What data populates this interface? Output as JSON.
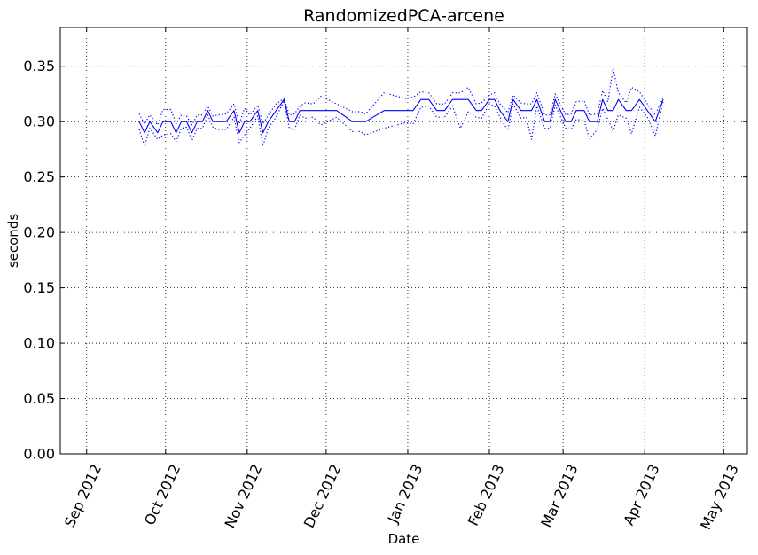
{
  "chart_data": {
    "type": "line",
    "title": "RandomizedPCA-arcene",
    "xlabel": "Date",
    "ylabel": "seconds",
    "xlim": [
      "2012-08-22",
      "2013-05-10"
    ],
    "ylim": [
      0.0,
      0.385
    ],
    "grid": true,
    "line_color": "#0000ff",
    "x_ticks": [
      {
        "date": "2012-09-01",
        "label": "Sep 2012"
      },
      {
        "date": "2012-10-01",
        "label": "Oct 2012"
      },
      {
        "date": "2012-11-01",
        "label": "Nov 2012"
      },
      {
        "date": "2012-12-01",
        "label": "Dec 2012"
      },
      {
        "date": "2013-01-01",
        "label": "Jan 2013"
      },
      {
        "date": "2013-02-01",
        "label": "Feb 2013"
      },
      {
        "date": "2013-03-01",
        "label": "Mar 2013"
      },
      {
        "date": "2013-04-01",
        "label": "Apr 2013"
      },
      {
        "date": "2013-05-01",
        "label": "May 2013"
      }
    ],
    "y_ticks": [
      {
        "value": 0.0,
        "label": "0.00"
      },
      {
        "value": 0.05,
        "label": "0.05"
      },
      {
        "value": 0.1,
        "label": "0.10"
      },
      {
        "value": 0.15,
        "label": "0.15"
      },
      {
        "value": 0.2,
        "label": "0.20"
      },
      {
        "value": 0.25,
        "label": "0.25"
      },
      {
        "value": 0.3,
        "label": "0.30"
      },
      {
        "value": 0.35,
        "label": "0.35"
      }
    ],
    "series": [
      {
        "style": "solid",
        "x": [
          "2012-09-21",
          "2012-09-23",
          "2012-09-25",
          "2012-09-28",
          "2012-09-30",
          "2012-10-03",
          "2012-10-05",
          "2012-10-07",
          "2012-10-09",
          "2012-10-11",
          "2012-10-13",
          "2012-10-15",
          "2012-10-17",
          "2012-10-19",
          "2012-10-21",
          "2012-10-24",
          "2012-10-27",
          "2012-10-29",
          "2012-10-31",
          "2012-11-02",
          "2012-11-05",
          "2012-11-07",
          "2012-11-09",
          "2012-11-12",
          "2012-11-15",
          "2012-11-17",
          "2012-11-19",
          "2012-11-21",
          "2012-11-23",
          "2012-11-26",
          "2012-11-29",
          "2012-12-05",
          "2012-12-11",
          "2012-12-14",
          "2012-12-16",
          "2012-12-23",
          "2012-12-31",
          "2013-01-03",
          "2013-01-06",
          "2013-01-09",
          "2013-01-12",
          "2013-01-15",
          "2013-01-18",
          "2013-01-21",
          "2013-01-24",
          "2013-01-27",
          "2013-01-29",
          "2013-02-01",
          "2013-02-03",
          "2013-02-05",
          "2013-02-08",
          "2013-02-10",
          "2013-02-13",
          "2013-02-15",
          "2013-02-17",
          "2013-02-19",
          "2013-02-22",
          "2013-02-24",
          "2013-02-26",
          "2013-03-02",
          "2013-03-04",
          "2013-03-06",
          "2013-03-09",
          "2013-03-11",
          "2013-03-14",
          "2013-03-16",
          "2013-03-18",
          "2013-03-20",
          "2013-03-22",
          "2013-03-25",
          "2013-03-27",
          "2013-03-30",
          "2013-04-02",
          "2013-04-05",
          "2013-04-08"
        ],
        "values": [
          0.3,
          0.29,
          0.3,
          0.29,
          0.3,
          0.3,
          0.29,
          0.3,
          0.3,
          0.29,
          0.3,
          0.3,
          0.31,
          0.3,
          0.3,
          0.3,
          0.31,
          0.29,
          0.3,
          0.3,
          0.31,
          0.29,
          0.3,
          0.31,
          0.32,
          0.3,
          0.3,
          0.31,
          0.31,
          0.31,
          0.31,
          0.31,
          0.3,
          0.3,
          0.3,
          0.31,
          0.31,
          0.31,
          0.32,
          0.32,
          0.31,
          0.31,
          0.32,
          0.32,
          0.32,
          0.31,
          0.31,
          0.32,
          0.32,
          0.31,
          0.3,
          0.32,
          0.31,
          0.31,
          0.31,
          0.32,
          0.3,
          0.3,
          0.32,
          0.3,
          0.3,
          0.31,
          0.31,
          0.3,
          0.3,
          0.32,
          0.31,
          0.31,
          0.32,
          0.31,
          0.31,
          0.32,
          0.31,
          0.3,
          0.32
        ]
      },
      {
        "style": "dotted",
        "x": [
          "2012-09-21",
          "2012-09-23",
          "2012-09-25",
          "2012-09-28",
          "2012-09-30",
          "2012-10-03",
          "2012-10-05",
          "2012-10-07",
          "2012-10-09",
          "2012-10-11",
          "2012-10-13",
          "2012-10-15",
          "2012-10-17",
          "2012-10-19",
          "2012-10-21",
          "2012-10-24",
          "2012-10-27",
          "2012-10-29",
          "2012-10-31",
          "2012-11-02",
          "2012-11-05",
          "2012-11-07",
          "2012-11-09",
          "2012-11-12",
          "2012-11-15",
          "2012-11-17",
          "2012-11-19",
          "2012-11-21",
          "2012-11-23",
          "2012-11-26",
          "2012-11-29",
          "2012-12-05",
          "2012-12-11",
          "2012-12-14",
          "2012-12-16",
          "2012-12-23",
          "2012-12-31",
          "2013-01-03",
          "2013-01-06",
          "2013-01-09",
          "2013-01-12",
          "2013-01-15",
          "2013-01-18",
          "2013-01-21",
          "2013-01-24",
          "2013-01-27",
          "2013-01-29",
          "2013-02-01",
          "2013-02-03",
          "2013-02-05",
          "2013-02-08",
          "2013-02-10",
          "2013-02-13",
          "2013-02-15",
          "2013-02-17",
          "2013-02-19",
          "2013-02-22",
          "2013-02-24",
          "2013-02-26",
          "2013-03-02",
          "2013-03-04",
          "2013-03-06",
          "2013-03-09",
          "2013-03-11",
          "2013-03-14",
          "2013-03-16",
          "2013-03-18",
          "2013-03-20",
          "2013-03-22",
          "2013-03-25",
          "2013-03-27",
          "2013-03-30",
          "2013-04-02",
          "2013-04-05",
          "2013-04-08"
        ],
        "values": [
          0.307,
          0.298,
          0.306,
          0.297,
          0.311,
          0.311,
          0.298,
          0.306,
          0.305,
          0.297,
          0.306,
          0.306,
          0.314,
          0.305,
          0.306,
          0.307,
          0.316,
          0.298,
          0.312,
          0.306,
          0.315,
          0.298,
          0.306,
          0.316,
          0.321,
          0.306,
          0.307,
          0.314,
          0.317,
          0.316,
          0.323,
          0.316,
          0.309,
          0.309,
          0.307,
          0.326,
          0.321,
          0.322,
          0.327,
          0.326,
          0.316,
          0.316,
          0.326,
          0.326,
          0.331,
          0.316,
          0.317,
          0.324,
          0.326,
          0.316,
          0.308,
          0.324,
          0.317,
          0.316,
          0.316,
          0.326,
          0.306,
          0.306,
          0.325,
          0.306,
          0.307,
          0.318,
          0.319,
          0.306,
          0.307,
          0.328,
          0.318,
          0.348,
          0.326,
          0.317,
          0.331,
          0.327,
          0.316,
          0.306,
          0.322
        ]
      },
      {
        "style": "dotted",
        "x": [
          "2012-09-21",
          "2012-09-23",
          "2012-09-25",
          "2012-09-28",
          "2012-09-30",
          "2012-10-03",
          "2012-10-05",
          "2012-10-07",
          "2012-10-09",
          "2012-10-11",
          "2012-10-13",
          "2012-10-15",
          "2012-10-17",
          "2012-10-19",
          "2012-10-21",
          "2012-10-24",
          "2012-10-27",
          "2012-10-29",
          "2012-10-31",
          "2012-11-02",
          "2012-11-05",
          "2012-11-07",
          "2012-11-09",
          "2012-11-12",
          "2012-11-15",
          "2012-11-17",
          "2012-11-19",
          "2012-11-21",
          "2012-11-23",
          "2012-11-26",
          "2012-11-29",
          "2012-12-05",
          "2012-12-11",
          "2012-12-14",
          "2012-12-16",
          "2012-12-23",
          "2012-12-31",
          "2013-01-03",
          "2013-01-06",
          "2013-01-09",
          "2013-01-12",
          "2013-01-15",
          "2013-01-18",
          "2013-01-21",
          "2013-01-24",
          "2013-01-27",
          "2013-01-29",
          "2013-02-01",
          "2013-02-03",
          "2013-02-05",
          "2013-02-08",
          "2013-02-10",
          "2013-02-13",
          "2013-02-15",
          "2013-02-17",
          "2013-02-19",
          "2013-02-22",
          "2013-02-24",
          "2013-02-26",
          "2013-03-02",
          "2013-03-04",
          "2013-03-06",
          "2013-03-09",
          "2013-03-11",
          "2013-03-14",
          "2013-03-16",
          "2013-03-18",
          "2013-03-20",
          "2013-03-22",
          "2013-03-25",
          "2013-03-27",
          "2013-03-30",
          "2013-04-02",
          "2013-04-05",
          "2013-04-08"
        ],
        "values": [
          0.293,
          0.278,
          0.294,
          0.284,
          0.288,
          0.289,
          0.282,
          0.294,
          0.295,
          0.283,
          0.294,
          0.294,
          0.306,
          0.295,
          0.293,
          0.293,
          0.304,
          0.281,
          0.288,
          0.294,
          0.305,
          0.278,
          0.294,
          0.304,
          0.319,
          0.294,
          0.293,
          0.306,
          0.303,
          0.304,
          0.297,
          0.304,
          0.291,
          0.291,
          0.288,
          0.294,
          0.299,
          0.298,
          0.313,
          0.314,
          0.304,
          0.304,
          0.314,
          0.294,
          0.309,
          0.304,
          0.303,
          0.316,
          0.314,
          0.304,
          0.292,
          0.316,
          0.303,
          0.304,
          0.284,
          0.314,
          0.294,
          0.294,
          0.315,
          0.294,
          0.293,
          0.302,
          0.301,
          0.284,
          0.293,
          0.312,
          0.302,
          0.292,
          0.306,
          0.303,
          0.289,
          0.313,
          0.304,
          0.287,
          0.318
        ]
      }
    ]
  }
}
